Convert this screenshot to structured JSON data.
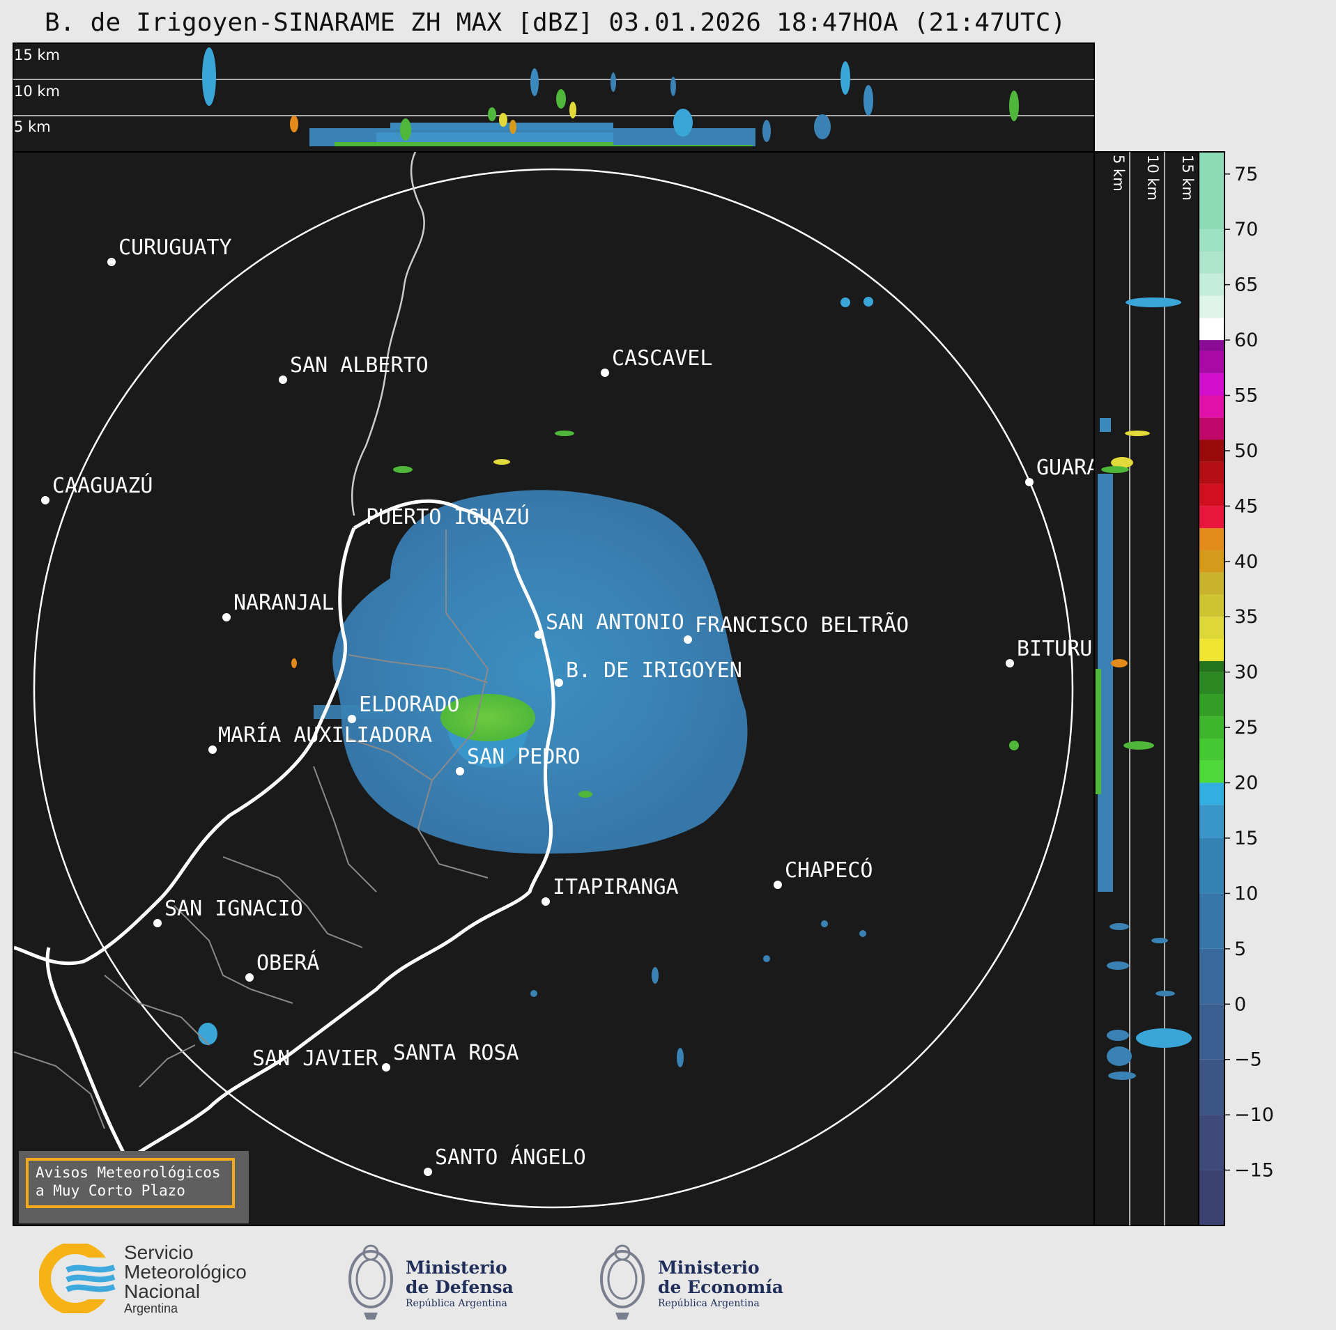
{
  "title": "B. de Irigoyen-SINARAME ZH MAX [dBZ] 03.01.2026 18:47HOA (21:47UTC)",
  "top_altitude_labels": [
    "15 km",
    "10 km",
    "5 km"
  ],
  "side_altitude_labels": [
    "5 km",
    "10 km",
    "15 km"
  ],
  "cities": [
    {
      "name": "CURUGUATY"
    },
    {
      "name": "SAN ALBERTO"
    },
    {
      "name": "CASCAVEL"
    },
    {
      "name": "CAAGUAZÚ"
    },
    {
      "name": "GUARA"
    },
    {
      "name": "PUERTO IGUAZÚ"
    },
    {
      "name": "NARANJAL"
    },
    {
      "name": "SAN ANTONIO"
    },
    {
      "name": "FRANCISCO BELTRÃO"
    },
    {
      "name": "BITURU"
    },
    {
      "name": "B. DE IRIGOYEN"
    },
    {
      "name": "ELDORADO"
    },
    {
      "name": "MARÍA AUXILIADORA"
    },
    {
      "name": "SAN PEDRO"
    },
    {
      "name": "CHAPECÓ"
    },
    {
      "name": "ITAPIRANGA"
    },
    {
      "name": "SAN IGNACIO"
    },
    {
      "name": "OBERÁ"
    },
    {
      "name": "SAN JAVIER"
    },
    {
      "name": "SANTA ROSA"
    },
    {
      "name": "SANTO ÁNGELO"
    }
  ],
  "colorbar": {
    "ticks": [
      "75",
      "70",
      "65",
      "60",
      "55",
      "50",
      "45",
      "40",
      "35",
      "30",
      "25",
      "20",
      "15",
      "10",
      "5",
      "0",
      "−5",
      "−10",
      "−15"
    ]
  },
  "notice": {
    "line1": "Avisos Meteorológicos",
    "line2": "a Muy Corto Plazo"
  },
  "logos": {
    "smn": {
      "line1": "Servicio",
      "line2": "Meteorológico",
      "line3": "Nacional",
      "line4": "Argentina"
    },
    "defensa": {
      "line1": "Ministerio",
      "line2": "de Defensa",
      "line3": "República Argentina"
    },
    "economia": {
      "line1": "Ministerio",
      "line2": "de Economía",
      "line3": "República Argentina"
    }
  }
}
